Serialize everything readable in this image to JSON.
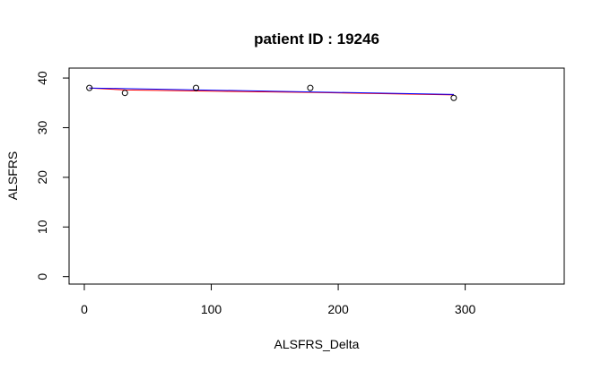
{
  "chart_data": {
    "type": "scatter",
    "title": "patient ID : 19246",
    "xlabel": "ALSFRS_Delta",
    "ylabel": "ALSFRS",
    "xlim": [
      -12,
      378
    ],
    "ylim": [
      -1.5,
      42
    ],
    "x_ticks": [
      0,
      100,
      200,
      300
    ],
    "y_ticks": [
      0,
      10,
      20,
      30,
      40
    ],
    "points": [
      {
        "x": 4,
        "y": 38
      },
      {
        "x": 32,
        "y": 37
      },
      {
        "x": 88,
        "y": 38
      },
      {
        "x": 178,
        "y": 38
      },
      {
        "x": 291,
        "y": 36
      }
    ],
    "lines": [
      {
        "color": "#ff0000",
        "points": [
          [
            4,
            38.0
          ],
          [
            32,
            37.6
          ],
          [
            88,
            37.4
          ],
          [
            178,
            37.1
          ],
          [
            291,
            36.6
          ]
        ]
      },
      {
        "color": "#0000ff",
        "points": [
          [
            4,
            38.0
          ],
          [
            291,
            36.7
          ]
        ]
      }
    ],
    "point_color": "#000000"
  }
}
